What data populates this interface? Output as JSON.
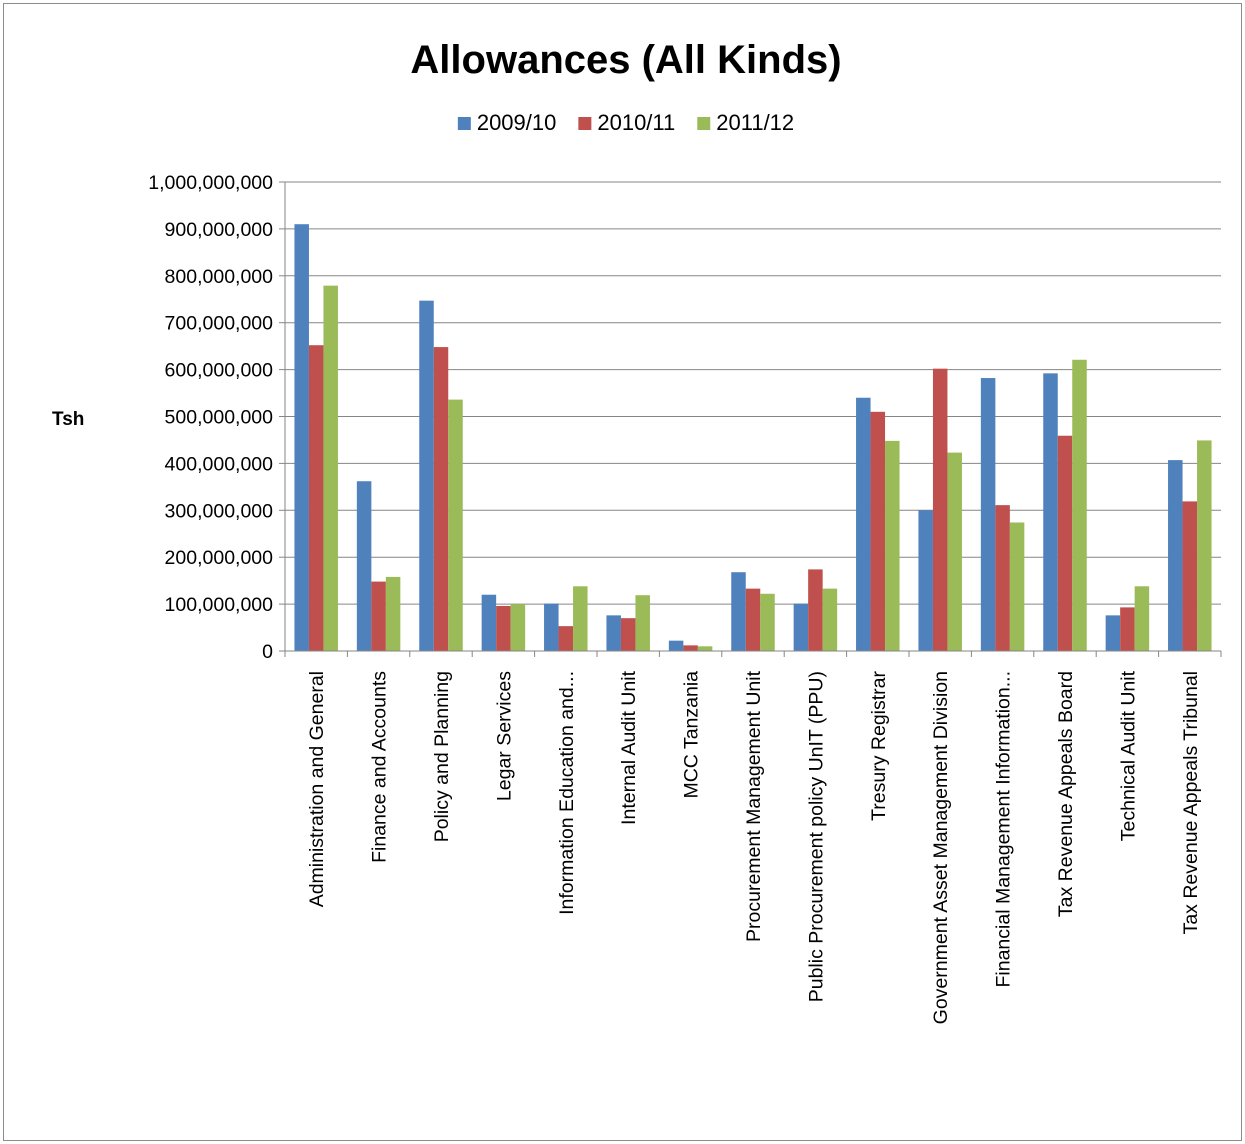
{
  "chart_data": {
    "type": "bar",
    "title": "Allowances (All Kinds)",
    "xlabel": "",
    "ylabel": "Tsh",
    "ylim": [
      0,
      1000000000
    ],
    "ytick_values": [
      0,
      100000000,
      200000000,
      300000000,
      400000000,
      500000000,
      600000000,
      700000000,
      800000000,
      900000000,
      1000000000
    ],
    "ytick_labels": [
      "0",
      "100,000,000",
      "200,000,000",
      "300,000,000",
      "400,000,000",
      "500,000,000",
      "600,000,000",
      "700,000,000",
      "800,000,000",
      "900,000,000",
      "1,000,000,000"
    ],
    "grid": true,
    "legend_position": "top",
    "categories": [
      "Administration and General",
      "Finance and Accounts",
      "Policy and Planning",
      "Legar Services",
      "Information Education and...",
      "Internal Audit Unit",
      "MCC Tanzania",
      "Procurement Management Unit",
      "Public Procurement policy UnIT (PPU)",
      "Tresury Registrar",
      "Government Asset Management Division",
      "Financial Management Information...",
      "Tax Revenue Appeals Board",
      "Technical Audit Unit",
      "Tax Revenue Appeals Tribunal"
    ],
    "series": [
      {
        "name": "2009/10",
        "color": "#4f81bd",
        "values": [
          910000000,
          362000000,
          747000000,
          120000000,
          101000000,
          76000000,
          22000000,
          168000000,
          101000000,
          540000000,
          300000000,
          582000000,
          592000000,
          76000000,
          407000000
        ]
      },
      {
        "name": "2010/11",
        "color": "#c0504d",
        "values": [
          652000000,
          148000000,
          648000000,
          96000000,
          53000000,
          70000000,
          12000000,
          133000000,
          174000000,
          510000000,
          602000000,
          311000000,
          459000000,
          93000000,
          319000000
        ]
      },
      {
        "name": "2011/12",
        "color": "#9bbb59",
        "values": [
          779000000,
          158000000,
          536000000,
          100000000,
          138000000,
          119000000,
          10000000,
          122000000,
          133000000,
          448000000,
          423000000,
          274000000,
          621000000,
          138000000,
          449000000
        ]
      }
    ]
  }
}
